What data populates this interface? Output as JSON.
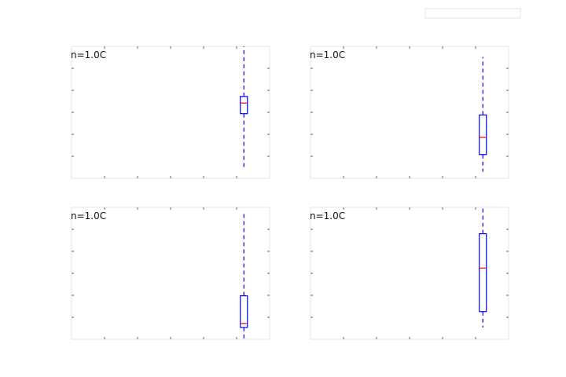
{
  "chart_data": [
    {
      "type": "box",
      "annotation": "n=1.0C",
      "boxes": [
        {
          "x": 0.87,
          "whislo": 0.07,
          "q1": 0.49,
          "med": 0.57,
          "q3": 0.62,
          "whishi": 1.0
        }
      ],
      "xlim": [
        0,
        1
      ],
      "ylim": [
        0,
        1
      ]
    },
    {
      "type": "box",
      "annotation": "n=1.0C",
      "boxes": [
        {
          "x": 0.87,
          "whislo": 0.05,
          "q1": 0.18,
          "med": 0.31,
          "q3": 0.48,
          "whishi": 0.92
        }
      ],
      "xlim": [
        0,
        1
      ],
      "ylim": [
        0,
        1
      ]
    },
    {
      "type": "box",
      "annotation": "n=1.0C",
      "boxes": [
        {
          "x": 0.87,
          "whislo": 0.0,
          "q1": 0.09,
          "med": 0.12,
          "q3": 0.33,
          "whishi": 0.97
        }
      ],
      "xlim": [
        0,
        1
      ],
      "ylim": [
        0,
        1
      ]
    },
    {
      "type": "box",
      "annotation": "n=1.0C",
      "boxes": [
        {
          "x": 0.87,
          "whislo": 0.09,
          "q1": 0.21,
          "med": 0.54,
          "q3": 0.8,
          "whishi": 1.0
        }
      ],
      "xlim": [
        0,
        1
      ],
      "ylim": [
        0,
        1
      ]
    }
  ],
  "colors": {
    "box": "#0000ff",
    "median": "#ff0000",
    "frame": "#e6e6e6",
    "tick": "#666666"
  },
  "legend_placement": "top-right"
}
